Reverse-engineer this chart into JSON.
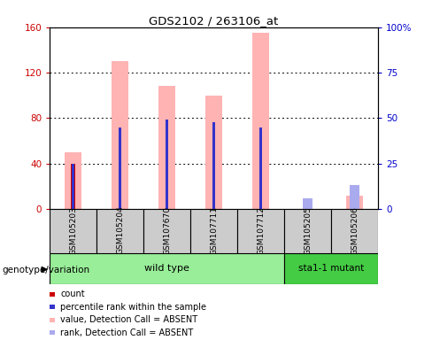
{
  "title": "GDS2102 / 263106_at",
  "samples": [
    "GSM105203",
    "GSM105204",
    "GSM107670",
    "GSM107711",
    "GSM107712",
    "GSM105205",
    "GSM105206"
  ],
  "pink_bars": [
    50,
    130,
    108,
    100,
    155,
    0,
    12
  ],
  "red_bars": [
    40,
    0,
    0,
    0,
    0,
    0,
    0
  ],
  "blue_bars_pct": [
    25,
    45,
    49,
    48,
    45,
    0,
    0
  ],
  "lightblue_bars_pct": [
    0,
    0,
    0,
    0,
    0,
    6,
    13
  ],
  "ylim_left": [
    0,
    160
  ],
  "ylim_right": [
    0,
    100
  ],
  "yticks_left": [
    0,
    40,
    80,
    120,
    160
  ],
  "ytick_labels_left": [
    "0",
    "40",
    "80",
    "120",
    "160"
  ],
  "yticks_right": [
    0,
    25,
    50,
    75,
    100
  ],
  "ytick_labels_right": [
    "0",
    "25",
    "50",
    "75",
    "100%"
  ],
  "left_tick_color": "#cc0000",
  "right_tick_color": "#0000cc",
  "pink_color": "#ffb3b3",
  "red_color": "#cc0000",
  "blue_color": "#3333cc",
  "lightblue_color": "#aaaaee",
  "genotype_label": "genotype/variation",
  "wildtype_label": "wild type",
  "mutant_label": "sta1-1 mutant",
  "wildtype_color": "#99ee99",
  "mutant_color": "#44cc44",
  "label_bg_color": "#cccccc",
  "legend_items": [
    {
      "color": "#cc0000",
      "label": "count"
    },
    {
      "color": "#3333cc",
      "label": "percentile rank within the sample"
    },
    {
      "color": "#ffb3b3",
      "label": "value, Detection Call = ABSENT"
    },
    {
      "color": "#aaaaee",
      "label": "rank, Detection Call = ABSENT"
    }
  ],
  "figsize": [
    4.88,
    3.84
  ],
  "dpi": 100
}
